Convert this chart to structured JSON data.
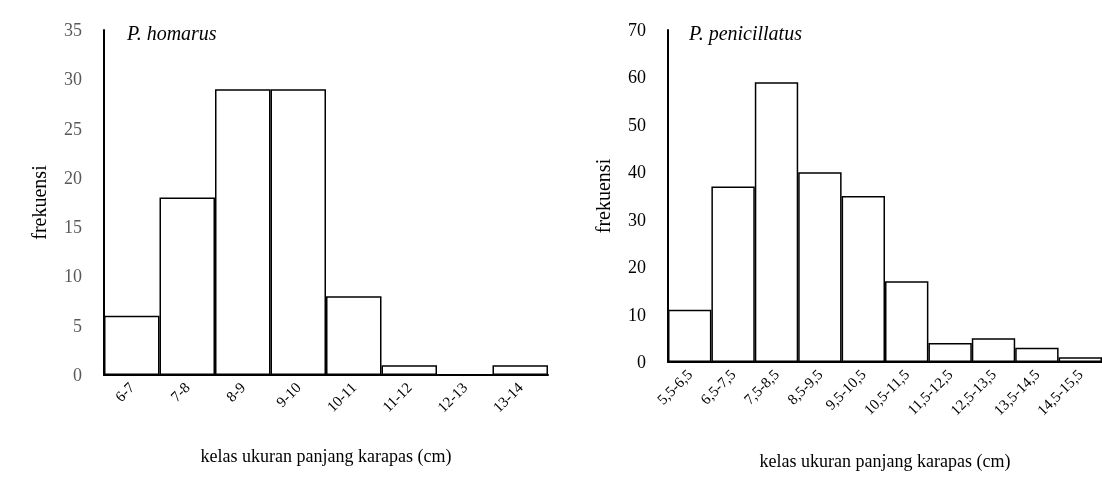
{
  "chart_data": [
    {
      "type": "bar",
      "title": "P. homarus",
      "xlabel": "kelas ukuran panjang karapas (cm)",
      "ylabel": "frekuensi",
      "categories": [
        "6-7",
        "7-8",
        "8-9",
        "9-10",
        "10-11",
        "11-12",
        "12-13",
        "13-14"
      ],
      "values": [
        6,
        18,
        29,
        29,
        8,
        1,
        0,
        1
      ],
      "color": "#ffffff",
      "ylim": [
        0,
        35
      ],
      "yticks": [
        0,
        5,
        10,
        15,
        20,
        25,
        30,
        35
      ],
      "grid": false
    },
    {
      "type": "bar",
      "title": "P. penicillatus",
      "xlabel": "kelas ukuran panjang karapas (cm)",
      "ylabel": "frekuensi",
      "categories": [
        "5,5-6,5",
        "6,5-7,5",
        "7,5-8,5",
        "8,5-9,5",
        "9,5-10,5",
        "10,5-11,5",
        "11,5-12,5",
        "12,5-13,5",
        "13,5-14,5",
        "14,5-15,5"
      ],
      "values": [
        11,
        37,
        59,
        40,
        35,
        17,
        4,
        5,
        3,
        1
      ],
      "color": "#ffffff",
      "ylim": [
        0,
        70
      ],
      "yticks": [
        0,
        10,
        20,
        30,
        40,
        50,
        60,
        70
      ],
      "grid": false
    }
  ]
}
